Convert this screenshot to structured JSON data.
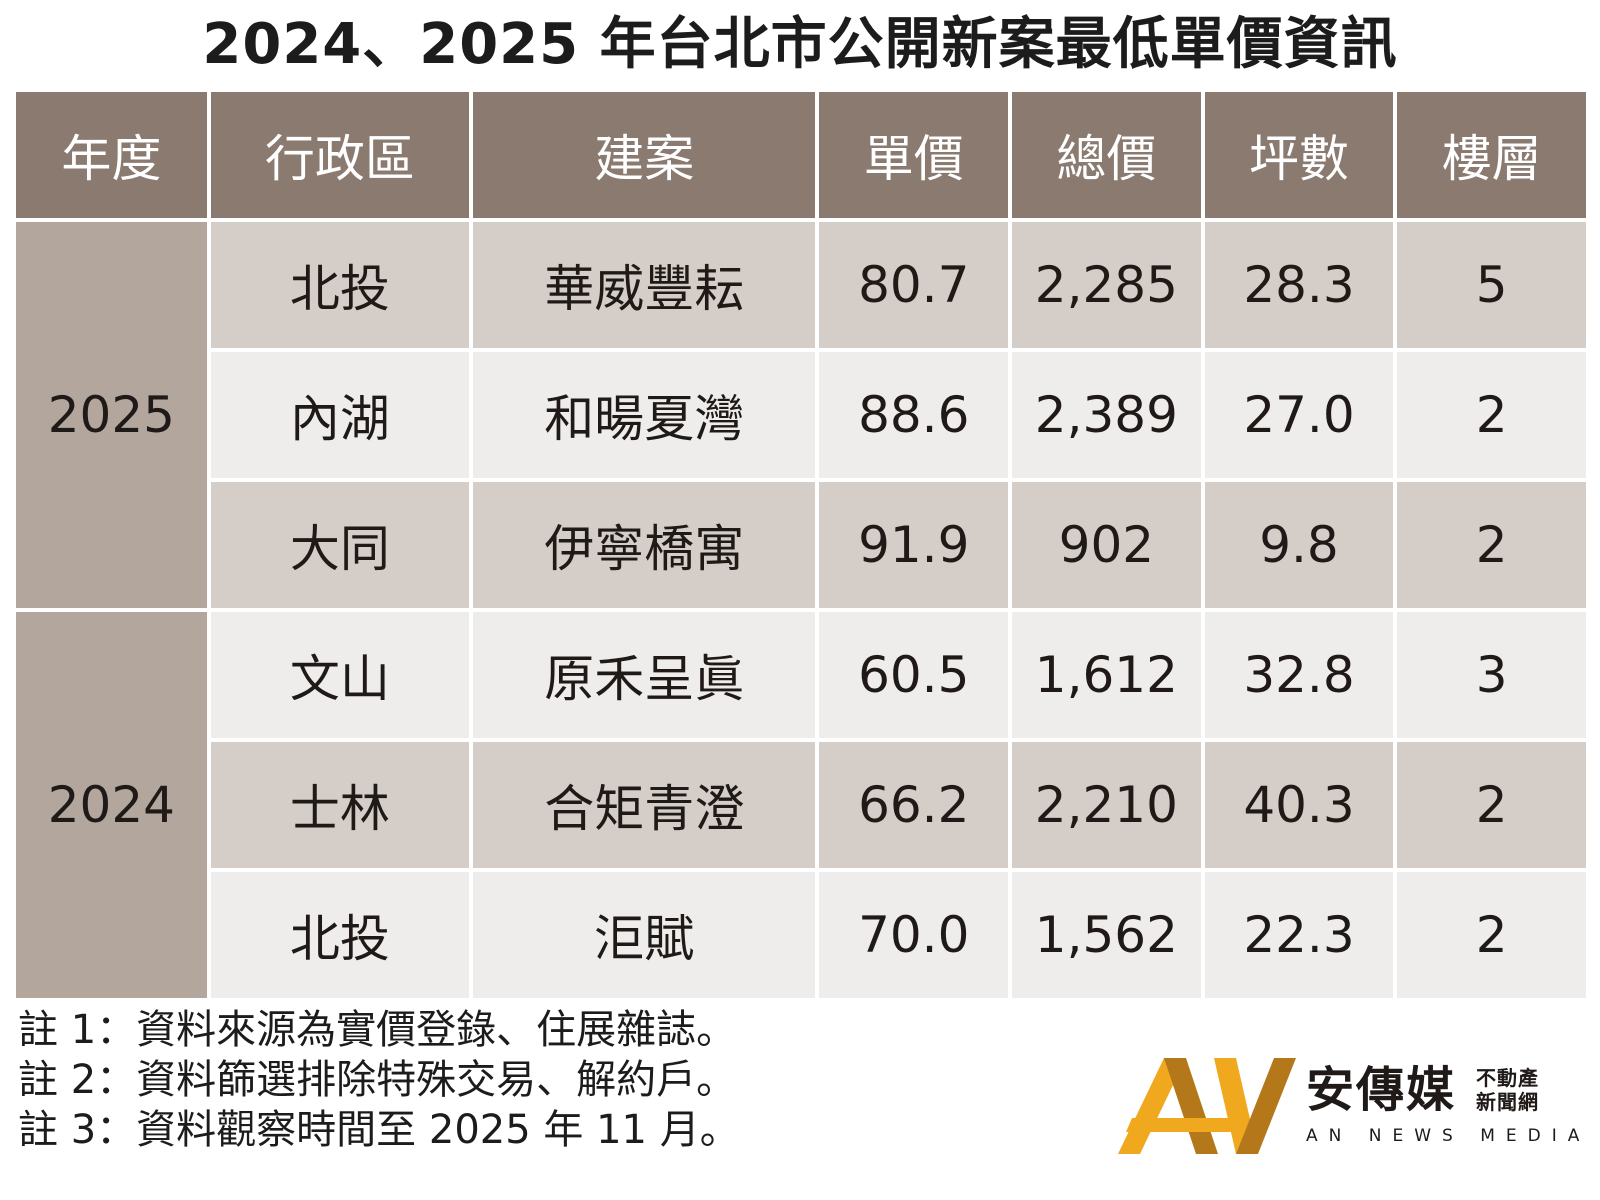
{
  "title": "2024、2025 年台北市公開新案最低單價資訊",
  "table": {
    "headers": [
      "年度",
      "行政區",
      "建案",
      "單價",
      "總價",
      "坪數",
      "樓層"
    ],
    "groups": [
      {
        "year": "2025",
        "rows": [
          {
            "district": "北投",
            "project": "華威豐耘",
            "unit_price": "80.7",
            "total_price": "2,285",
            "area": "28.3",
            "floor": "5"
          },
          {
            "district": "內湖",
            "project": "和暘夏灣",
            "unit_price": "88.6",
            "total_price": "2,389",
            "area": "27.0",
            "floor": "2"
          },
          {
            "district": "大同",
            "project": "伊寧橋寓",
            "unit_price": "91.9",
            "total_price": "902",
            "area": "9.8",
            "floor": "2"
          }
        ]
      },
      {
        "year": "2024",
        "rows": [
          {
            "district": "文山",
            "project": "原禾呈眞",
            "unit_price": "60.5",
            "total_price": "1,612",
            "area": "32.8",
            "floor": "3"
          },
          {
            "district": "士林",
            "project": "合矩青澄",
            "unit_price": "66.2",
            "total_price": "2,210",
            "area": "40.3",
            "floor": "2"
          },
          {
            "district": "北投",
            "project": "洰賦",
            "unit_price": "70.0",
            "total_price": "1,562",
            "area": "22.3",
            "floor": "2"
          }
        ]
      }
    ]
  },
  "notes": [
    "註 1：資料來源為實價登錄、住展雜誌。",
    "註 2：資料篩選排除特殊交易、解約戶。",
    "註 3：資料觀察時間至 2025 年 11 月。"
  ],
  "brand": {
    "name": "安傳媒",
    "sub": "不動產新聞網",
    "english": "AN NEWS MEDIA",
    "colors": {
      "gold": "#f0a81e",
      "dark_gold": "#b4781a"
    }
  },
  "colors": {
    "header_bg": "#8a7a70",
    "year_bg": "#b3a69c",
    "row_dark": "#d5cdc7",
    "row_light": "#efedeb"
  }
}
